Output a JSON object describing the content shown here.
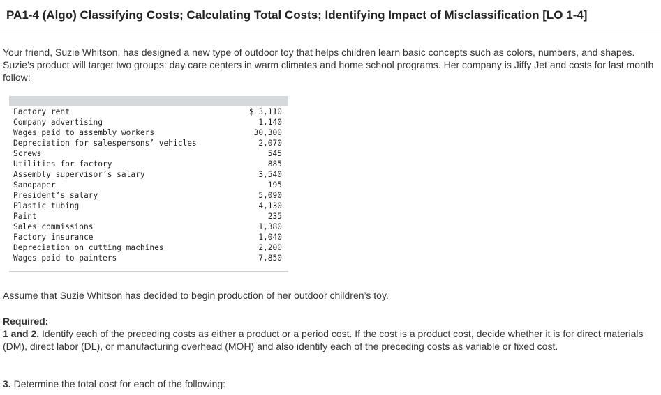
{
  "title": "PA1-4 (Algo) Classifying Costs; Calculating Total Costs; Identifying Impact of Misclassification [LO 1-4]",
  "intro": "Your friend, Suzie Whitson, has designed a new type of outdoor toy that helps children learn basic concepts such as colors, numbers, and shapes. Suzie’s product will target two groups: day care centers in warm climates and home school programs. Her company is Jiffy Jet and costs for last month follow:",
  "costs": [
    {
      "item": "Factory rent",
      "amount": "$ 3,110"
    },
    {
      "item": "Company advertising",
      "amount": "1,140"
    },
    {
      "item": "Wages paid to assembly workers",
      "amount": "30,300"
    },
    {
      "item": "Depreciation for salespersons’ vehicles",
      "amount": "2,070"
    },
    {
      "item": "Screws",
      "amount": "545"
    },
    {
      "item": "Utilities for factory",
      "amount": "885"
    },
    {
      "item": "Assembly supervisor’s salary",
      "amount": "3,540"
    },
    {
      "item": "Sandpaper",
      "amount": "195"
    },
    {
      "item": "President’s salary",
      "amount": "5,090"
    },
    {
      "item": "Plastic tubing",
      "amount": "4,130"
    },
    {
      "item": "Paint",
      "amount": "235"
    },
    {
      "item": "Sales commissions",
      "amount": "1,380"
    },
    {
      "item": "Factory insurance",
      "amount": "1,040"
    },
    {
      "item": "Depreciation on cutting machines",
      "amount": "2,200"
    },
    {
      "item": "Wages paid to painters",
      "amount": "7,850"
    }
  ],
  "assume": "Assume that Suzie Whitson has decided to begin production of her outdoor children’s toy.",
  "required_heading": "Required:",
  "req12_label": "1 and 2.",
  "req12_text": " Identify each of the preceding costs as either a product or a period cost. If the cost is a product cost, decide whether it is for direct materials (DM), direct labor (DL), or manufacturing overhead (MOH) and also identify each of the preceding costs as variable or fixed cost.",
  "req3_label": "3.",
  "req3_text": " Determine the total cost for each of the following:"
}
